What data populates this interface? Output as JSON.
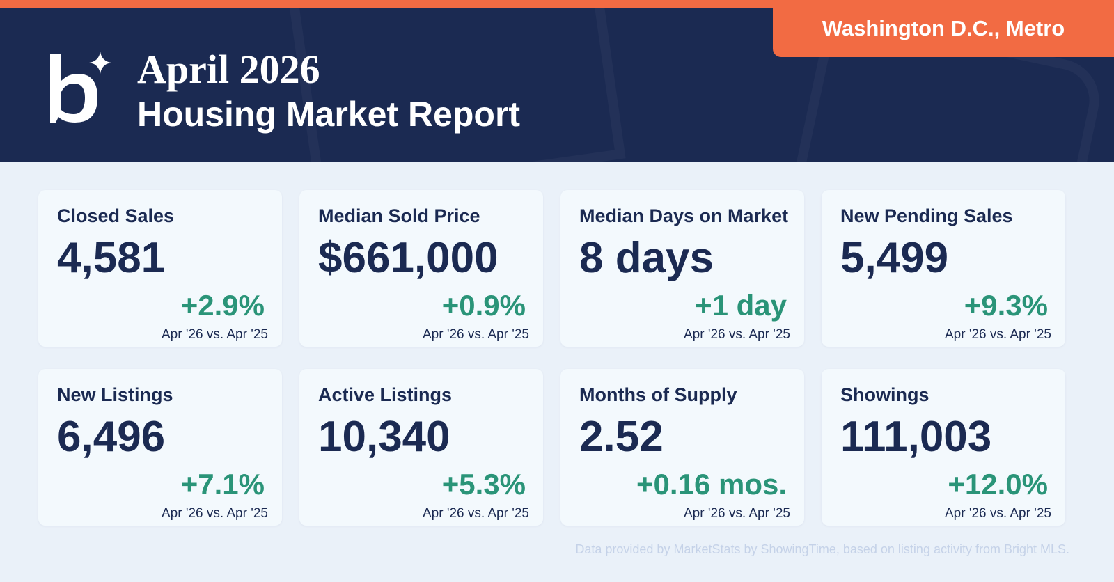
{
  "header": {
    "title": "April 2026",
    "subtitle": "Housing Market Report",
    "region": "Washington D.C., Metro"
  },
  "cards": [
    {
      "label": "Closed Sales",
      "value": "4,581",
      "change": "+2.9%",
      "comparison": "Apr '26 vs. Apr '25"
    },
    {
      "label": "Median Sold Price",
      "value": "$661,000",
      "change": "+0.9%",
      "comparison": "Apr '26 vs. Apr '25"
    },
    {
      "label": "Median Days on Market",
      "value": "8 days",
      "change": "+1 day",
      "comparison": "Apr '26 vs. Apr '25"
    },
    {
      "label": "New Pending Sales",
      "value": "5,499",
      "change": "+9.3%",
      "comparison": "Apr '26 vs. Apr '25"
    },
    {
      "label": "New Listings",
      "value": "6,496",
      "change": "+7.1%",
      "comparison": "Apr '26 vs. Apr '25"
    },
    {
      "label": "Active Listings",
      "value": "10,340",
      "change": "+5.3%",
      "comparison": "Apr '26 vs. Apr '25"
    },
    {
      "label": "Months of Supply",
      "value": "2.52",
      "change": "+0.16 mos.",
      "comparison": "Apr '26 vs. Apr '25"
    },
    {
      "label": "Showings",
      "value": "111,003",
      "change": "+12.0%",
      "comparison": "Apr '26 vs. Apr '25"
    }
  ],
  "footer": "Data provided by MarketStats by ShowingTime, based on listing activity from Bright MLS."
}
